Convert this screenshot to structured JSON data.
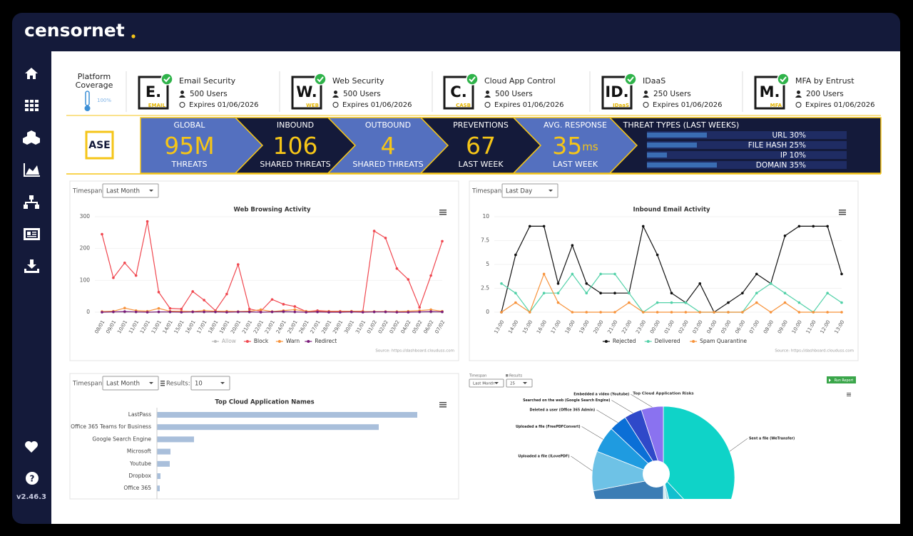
{
  "header": {
    "logo": "censornet"
  },
  "sidebar": {
    "version": "v2.46.3"
  },
  "coverage": {
    "title": [
      "Platform",
      "Coverage"
    ],
    "value": "100%"
  },
  "products": [
    {
      "letter": "E.",
      "tag": "EMAIL",
      "name": "Email Security",
      "users": "500 Users",
      "expires": "Expires 01/06/2026"
    },
    {
      "letter": "W.",
      "tag": "WEB",
      "name": "Web Security",
      "users": "500 Users",
      "expires": "Expires 01/06/2026"
    },
    {
      "letter": "C.",
      "tag": "CASB",
      "name": "Cloud App Control",
      "users": "500 Users",
      "expires": "Expires 01/06/2026"
    },
    {
      "letter": "ID.",
      "tag": "IDaaS",
      "name": "IDaaS",
      "users": "250 Users",
      "expires": "Expires 01/06/2026"
    },
    {
      "letter": "M.",
      "tag": "MFA",
      "name": "MFA by Entrust",
      "users": "200 Users",
      "expires": "Expires 01/06/2026"
    }
  ],
  "banner": {
    "badge": "ASE",
    "metrics": [
      {
        "label": "GLOBAL",
        "value": "95M",
        "sub": "THREATS"
      },
      {
        "label": "INBOUND",
        "value": 106,
        "sub": "SHARED THREATS"
      },
      {
        "label": "OUTBOUND",
        "value": 4,
        "sub": "SHARED THREATS"
      },
      {
        "label": "PREVENTIONS",
        "value": 67,
        "sub": "LAST WEEK"
      },
      {
        "label": "AVG. RESPONSE",
        "value": 35,
        "unit": "ms",
        "sub": "LAST WEEK"
      }
    ],
    "threat_types": {
      "title": "THREAT TYPES (LAST WEEKS)",
      "items": [
        {
          "label": "URL",
          "value": 30,
          "value_label": "30%"
        },
        {
          "label": "FILE HASH",
          "value": 25,
          "value_label": "25%"
        },
        {
          "label": "IP",
          "value": 10,
          "value_label": "10%"
        },
        {
          "label": "DOMAIN",
          "value": 35,
          "value_label": "35%"
        }
      ]
    }
  },
  "chart_data": [
    {
      "type": "line",
      "title": "Web Browsing Activity",
      "controls": {
        "timespan_label": "Timespan:",
        "timespan": "Last Month"
      },
      "categories": [
        "08/01",
        "09/01",
        "10/01",
        "11/01",
        "12/01",
        "13/01",
        "14/01",
        "15/01",
        "16/01",
        "17/01",
        "18/01",
        "19/01",
        "20/01",
        "21/01",
        "22/01",
        "23/01",
        "24/01",
        "25/01",
        "26/01",
        "27/01",
        "28/01",
        "29/01",
        "30/01",
        "31/01",
        "01/02",
        "02/02",
        "03/02",
        "04/02",
        "05/02",
        "06/02",
        "07/02"
      ],
      "ylim": [
        0,
        300
      ],
      "yticks": [
        0,
        100,
        200,
        300
      ],
      "series": [
        {
          "name": "Allow",
          "color": "#bbbbbb",
          "values": [
            0,
            0,
            0,
            0,
            0,
            0,
            0,
            0,
            0,
            0,
            0,
            0,
            0,
            0,
            0,
            0,
            0,
            0,
            0,
            0,
            0,
            0,
            0,
            0,
            0,
            0,
            0,
            0,
            0,
            0,
            0
          ]
        },
        {
          "name": "Block",
          "color": "#f0474f",
          "values": [
            245,
            108,
            155,
            115,
            285,
            63,
            12,
            10,
            65,
            38,
            5,
            57,
            150,
            10,
            3,
            40,
            25,
            18,
            2,
            5,
            3,
            3,
            3,
            3,
            255,
            233,
            137,
            103,
            15,
            115,
            223
          ]
        },
        {
          "name": "Warn",
          "color": "#f7923a",
          "values": [
            2,
            3,
            13,
            5,
            3,
            12,
            3,
            3,
            2,
            5,
            3,
            3,
            2,
            3,
            8,
            2,
            5,
            8,
            3,
            2,
            2,
            2,
            3,
            2,
            2,
            2,
            2,
            3,
            5,
            8,
            3
          ]
        },
        {
          "name": "Redirect",
          "color": "#7a1a7a",
          "values": [
            0,
            1,
            2,
            1,
            0,
            1,
            1,
            0,
            1,
            1,
            1,
            0,
            1,
            1,
            0,
            1,
            2,
            1,
            0,
            1,
            0,
            0,
            1,
            0,
            1,
            1,
            0,
            0,
            1,
            2,
            1
          ]
        }
      ],
      "source": "Source: https://dashboard.clouduss.com"
    },
    {
      "type": "line",
      "title": "Inbound Email Activity",
      "controls": {
        "timespan_label": "Timespan:",
        "timespan": "Last Day"
      },
      "categories": [
        "13:00",
        "14:00",
        "15:00",
        "16:00",
        "17:00",
        "18:00",
        "19:00",
        "20:00",
        "21:00",
        "22:00",
        "23:00",
        "00:00",
        "01:00",
        "02:00",
        "03:00",
        "04:00",
        "05:00",
        "06:00",
        "07:00",
        "08:00",
        "09:00",
        "10:00",
        "11:00",
        "12:00",
        "13:00"
      ],
      "ylim": [
        0,
        10
      ],
      "yticks": [
        0,
        2.5,
        5,
        7.5,
        10
      ],
      "series": [
        {
          "name": "Rejected",
          "color": "#111111",
          "values": [
            0,
            6,
            9,
            9,
            3,
            7,
            3,
            2,
            2,
            2,
            9,
            6,
            2,
            1,
            3,
            0,
            1,
            2,
            4,
            3,
            8,
            9,
            9,
            9,
            4
          ]
        },
        {
          "name": "Delivered",
          "color": "#52d1a8",
          "values": [
            3,
            2,
            0,
            2,
            2,
            4,
            2,
            4,
            4,
            2,
            0,
            1,
            1,
            1,
            0,
            0,
            0,
            0,
            2,
            3,
            2,
            1,
            0,
            2,
            1
          ]
        },
        {
          "name": "Spam Quarantine",
          "color": "#f7923a",
          "values": [
            0,
            1,
            0,
            4,
            1,
            0,
            0,
            0,
            0,
            1,
            0,
            0,
            0,
            0,
            0,
            0,
            0,
            0,
            1,
            0,
            1,
            0,
            0,
            0,
            0
          ]
        }
      ],
      "source": "Source: https://dashboard.clouduss.com"
    },
    {
      "type": "hbar",
      "title": "Top Cloud Application Names",
      "controls": {
        "timespan_label": "Timespan:",
        "timespan": "Last Month",
        "results_label": "Results:",
        "results": "10"
      },
      "categories": [
        "LastPass",
        "Office 365 Teams for Business",
        "Google Search Engine",
        "Microsoft",
        "Youtube",
        "Dropbox",
        "Office 365"
      ],
      "values": [
        365,
        311,
        52,
        19,
        18,
        5,
        4
      ],
      "color": "#a9bfdb"
    },
    {
      "type": "pie",
      "title": "Top Cloud Application Risks",
      "controls": {
        "timespan_label": "Timespan",
        "timespan": "Last Month",
        "results_label": "Results",
        "results": "25",
        "button": "Run Report"
      },
      "labels": [
        "Sent a file (WeTransfer)",
        null,
        null,
        null,
        null,
        "Uploaded a file (ILovePDF)",
        "Uploaded a file (FreePDFConvert)",
        "Deleted a user (Office 365 Admin)",
        "Searched on the web (Google Search Engine)",
        "Embedded a video (Youtube)"
      ],
      "values": [
        38,
        8,
        2,
        2,
        22,
        9,
        6,
        4,
        4,
        5
      ],
      "colors": [
        "#0fd3c8",
        "#12bfcf",
        "#a4dbe6",
        "#cfeaf0",
        "#3b7db5",
        "#6ec2e6",
        "#1f9be0",
        "#0b6fd6",
        "#2f49c9",
        "#8a72f0"
      ]
    }
  ]
}
